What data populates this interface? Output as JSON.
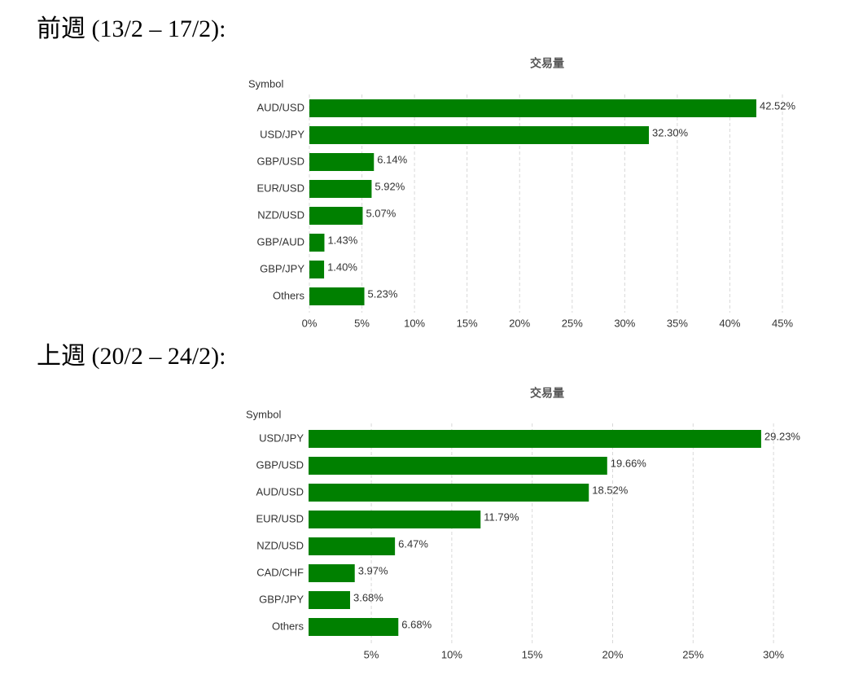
{
  "chart_data": [
    {
      "type": "bar",
      "orientation": "horizontal",
      "heading": "前週 (13/2 – 17/2):",
      "title": "交易量",
      "ylabel": "Symbol",
      "categories": [
        "AUD/USD",
        "USD/JPY",
        "GBP/USD",
        "EUR/USD",
        "NZD/USD",
        "GBP/AUD",
        "GBP/JPY",
        "Others"
      ],
      "values": [
        42.52,
        32.3,
        6.14,
        5.92,
        5.07,
        1.43,
        1.4,
        5.23
      ],
      "value_labels": [
        "42.52%",
        "32.30%",
        "6.14%",
        "5.92%",
        "5.07%",
        "1.43%",
        "1.40%",
        "5.23%"
      ],
      "color": "#008000",
      "xlim": [
        0,
        45
      ],
      "xticks": [
        {
          "value": 0,
          "label": "0%"
        },
        {
          "value": 5,
          "label": "5%"
        },
        {
          "value": 10,
          "label": "10%"
        },
        {
          "value": 15,
          "label": "15%"
        },
        {
          "value": 20,
          "label": "20%"
        },
        {
          "value": 25,
          "label": "25%"
        },
        {
          "value": 30,
          "label": "30%"
        },
        {
          "value": 35,
          "label": "35%"
        },
        {
          "value": 40,
          "label": "40%"
        },
        {
          "value": 45,
          "label": "45%"
        }
      ],
      "grid": true
    },
    {
      "type": "bar",
      "orientation": "horizontal",
      "heading": "上週 (20/2 – 24/2):",
      "title": "交易量",
      "ylabel": "Symbol",
      "categories": [
        "USD/JPY",
        "GBP/USD",
        "AUD/USD",
        "EUR/USD",
        "NZD/USD",
        "CAD/CHF",
        "GBP/JPY",
        "Others"
      ],
      "values": [
        29.23,
        19.66,
        18.52,
        11.79,
        6.47,
        3.97,
        3.68,
        6.68
      ],
      "value_labels": [
        "29.23%",
        "19.66%",
        "18.52%",
        "11.79%",
        "6.47%",
        "3.97%",
        "3.68%",
        "6.68%"
      ],
      "color": "#008000",
      "xlim": [
        1.1,
        30.5
      ],
      "xticks": [
        {
          "value": 5,
          "label": "5%"
        },
        {
          "value": 10,
          "label": "10%"
        },
        {
          "value": 15,
          "label": "15%"
        },
        {
          "value": 20,
          "label": "20%"
        },
        {
          "value": 25,
          "label": "25%"
        },
        {
          "value": 30,
          "label": "30%"
        }
      ],
      "grid": true
    }
  ]
}
